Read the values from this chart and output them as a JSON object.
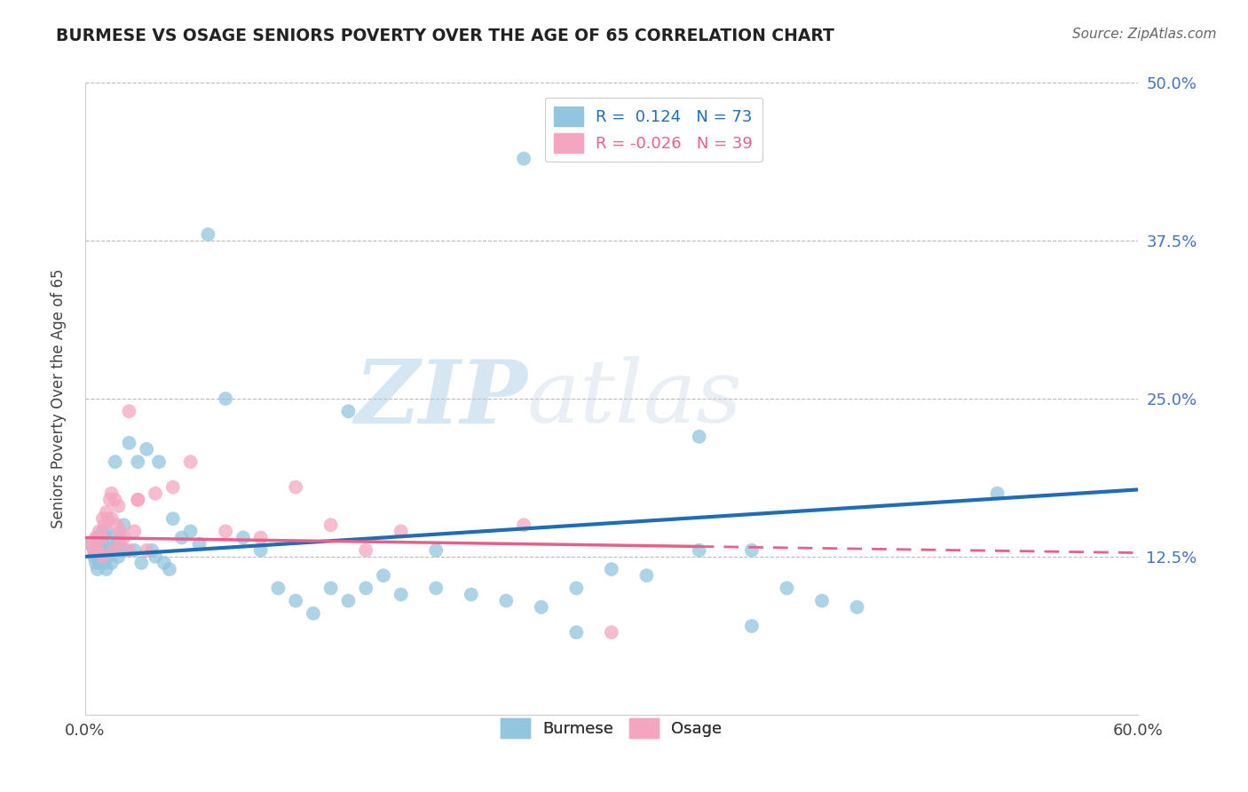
{
  "title": "BURMESE VS OSAGE SENIORS POVERTY OVER THE AGE OF 65 CORRELATION CHART",
  "source": "Source: ZipAtlas.com",
  "ylabel": "Seniors Poverty Over the Age of 65",
  "xlim": [
    0.0,
    0.6
  ],
  "ylim": [
    0.0,
    0.5
  ],
  "legend_burmese": "Burmese",
  "legend_osage": "Osage",
  "R_burmese": 0.124,
  "N_burmese": 73,
  "R_osage": -0.026,
  "N_osage": 39,
  "burmese_color": "#92c5de",
  "osage_color": "#f4a6c0",
  "burmese_trend_color": "#1f6db5",
  "osage_trend_color": "#e8608a",
  "background_color": "#ffffff",
  "watermark_zip": "ZIP",
  "watermark_atlas": "atlas",
  "burmese_x": [
    0.003,
    0.005,
    0.005,
    0.006,
    0.007,
    0.007,
    0.008,
    0.008,
    0.009,
    0.009,
    0.01,
    0.01,
    0.011,
    0.011,
    0.012,
    0.012,
    0.013,
    0.014,
    0.015,
    0.015,
    0.016,
    0.017,
    0.018,
    0.019,
    0.02,
    0.02,
    0.022,
    0.023,
    0.025,
    0.028,
    0.03,
    0.032,
    0.035,
    0.038,
    0.04,
    0.042,
    0.045,
    0.048,
    0.05,
    0.055,
    0.06,
    0.065,
    0.07,
    0.08,
    0.09,
    0.1,
    0.11,
    0.12,
    0.13,
    0.14,
    0.15,
    0.16,
    0.17,
    0.18,
    0.2,
    0.22,
    0.24,
    0.26,
    0.28,
    0.3,
    0.32,
    0.35,
    0.38,
    0.4,
    0.42,
    0.44,
    0.35,
    0.52,
    0.28,
    0.38,
    0.15,
    0.2,
    0.25
  ],
  "burmese_y": [
    0.135,
    0.13,
    0.125,
    0.12,
    0.14,
    0.115,
    0.13,
    0.12,
    0.14,
    0.125,
    0.145,
    0.135,
    0.13,
    0.12,
    0.145,
    0.115,
    0.125,
    0.13,
    0.14,
    0.12,
    0.13,
    0.2,
    0.135,
    0.125,
    0.14,
    0.13,
    0.15,
    0.13,
    0.215,
    0.13,
    0.2,
    0.12,
    0.21,
    0.13,
    0.125,
    0.2,
    0.12,
    0.115,
    0.155,
    0.14,
    0.145,
    0.135,
    0.38,
    0.25,
    0.14,
    0.13,
    0.1,
    0.09,
    0.08,
    0.1,
    0.09,
    0.1,
    0.11,
    0.095,
    0.1,
    0.095,
    0.09,
    0.085,
    0.1,
    0.115,
    0.11,
    0.13,
    0.13,
    0.1,
    0.09,
    0.085,
    0.22,
    0.175,
    0.065,
    0.07,
    0.24,
    0.13,
    0.44
  ],
  "osage_x": [
    0.003,
    0.005,
    0.006,
    0.007,
    0.008,
    0.009,
    0.01,
    0.011,
    0.012,
    0.013,
    0.014,
    0.015,
    0.016,
    0.017,
    0.018,
    0.019,
    0.02,
    0.022,
    0.025,
    0.028,
    0.03,
    0.035,
    0.04,
    0.05,
    0.06,
    0.08,
    0.1,
    0.12,
    0.14,
    0.16,
    0.18,
    0.25,
    0.3,
    0.005,
    0.01,
    0.015,
    0.02,
    0.025,
    0.03
  ],
  "osage_y": [
    0.135,
    0.13,
    0.14,
    0.13,
    0.145,
    0.14,
    0.155,
    0.15,
    0.16,
    0.155,
    0.17,
    0.175,
    0.13,
    0.17,
    0.15,
    0.165,
    0.135,
    0.14,
    0.13,
    0.145,
    0.17,
    0.13,
    0.175,
    0.18,
    0.2,
    0.145,
    0.14,
    0.18,
    0.15,
    0.13,
    0.145,
    0.15,
    0.065,
    0.13,
    0.125,
    0.155,
    0.145,
    0.24,
    0.17
  ]
}
